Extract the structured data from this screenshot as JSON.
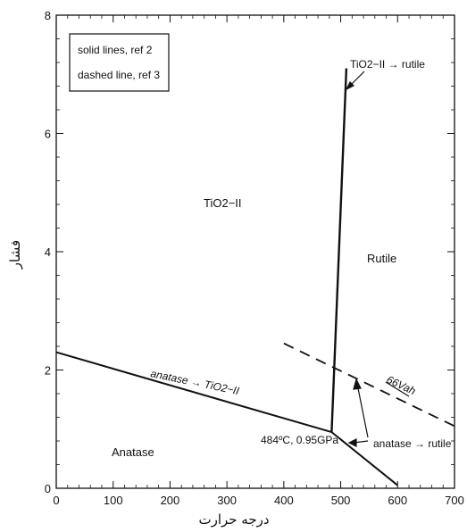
{
  "chart_data": {
    "type": "line",
    "title": "",
    "xlabel": "درجه حرارت",
    "ylabel": "فشار",
    "xlim": [
      0,
      700
    ],
    "ylim": [
      0,
      8
    ],
    "x_ticks": [
      0,
      100,
      200,
      300,
      400,
      500,
      600,
      700
    ],
    "y_ticks": [
      0,
      2,
      4,
      6,
      8
    ],
    "grid": false,
    "legend": {
      "placement": "top-left",
      "entries": [
        "solid lines, ref 2",
        "dashed line, ref 3"
      ]
    },
    "series": [
      {
        "style": "solid",
        "label": "anatase → TiO2−II",
        "x": [
          0,
          484
        ],
        "y": [
          2.3,
          0.95
        ]
      },
      {
        "style": "solid",
        "label": "TiO2−II → rutile",
        "x": [
          484,
          510
        ],
        "y": [
          0.95,
          7.1
        ]
      },
      {
        "style": "solid",
        "label": "anatase → rutile",
        "x": [
          484,
          600
        ],
        "y": [
          0.95,
          0.05
        ]
      },
      {
        "style": "dashed",
        "label": "66Vah",
        "x": [
          400,
          700
        ],
        "y": [
          2.45,
          1.05
        ]
      }
    ],
    "regions": [
      "TiO2−II",
      "Rutile",
      "Anatase"
    ],
    "annotations": {
      "triple_point": "484ºC, 0.95GPa"
    }
  }
}
